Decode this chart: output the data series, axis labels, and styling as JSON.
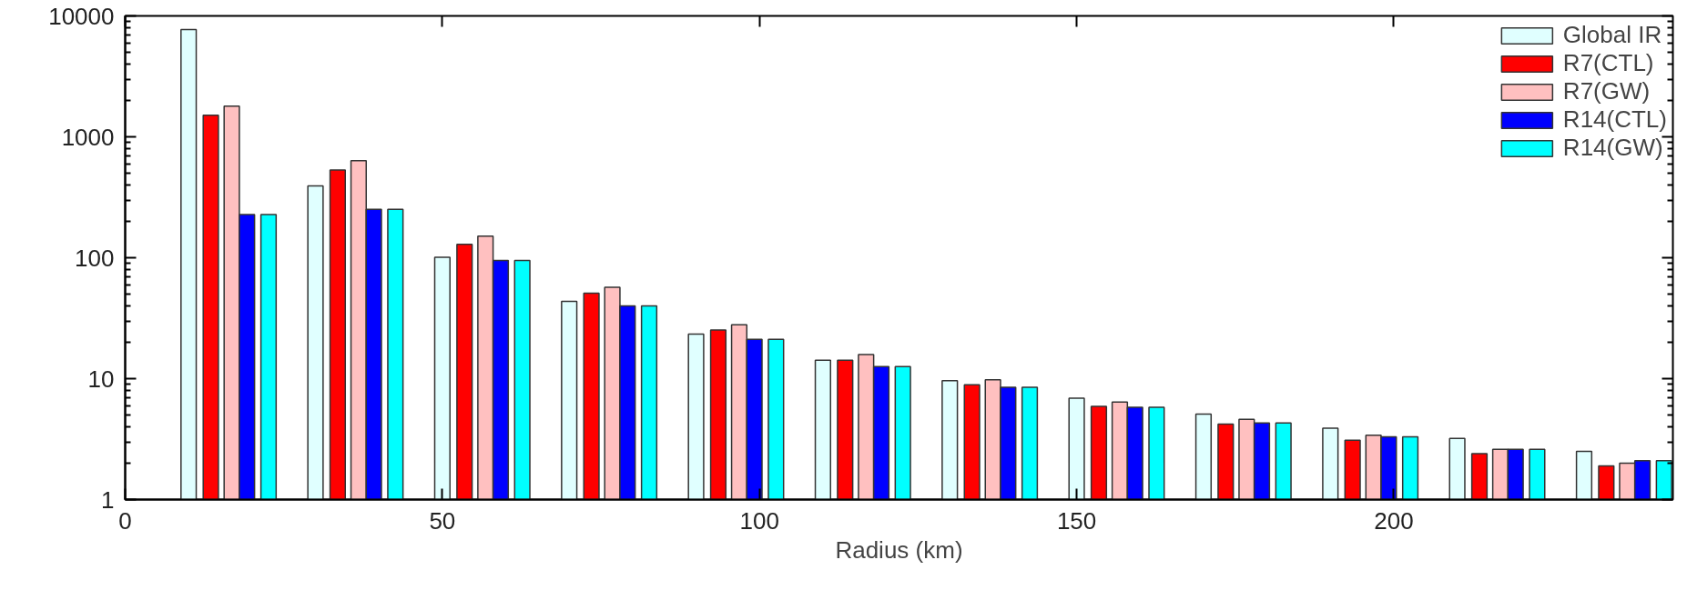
{
  "chart_data": {
    "type": "bar",
    "xlabel": "Radius (km)",
    "log": "y",
    "xlim": [
      0,
      244
    ],
    "xticks": [
      0,
      50,
      100,
      150,
      200
    ],
    "ylim": [
      1,
      10000
    ],
    "yticks": [
      1,
      10,
      100,
      1000,
      10000
    ],
    "legend": "top right",
    "grid": false,
    "series": [
      {
        "name": "Global IR",
        "color": "#e0ffff",
        "x": [
          10,
          30,
          50,
          70,
          90,
          110,
          130,
          150,
          170,
          190,
          210,
          230
        ],
        "values": [
          7700,
          392,
          101,
          43.6,
          23.4,
          14.2,
          9.6,
          6.9,
          5.1,
          3.9,
          3.2,
          2.5
        ]
      },
      {
        "name": "R7(CTL)",
        "color": "#ff0000",
        "x": [
          13.5,
          33.5,
          53.5,
          73.5,
          93.5,
          113.5,
          133.5,
          153.5,
          173.5,
          193.5,
          213.5,
          233.5
        ],
        "values": [
          1510,
          531,
          129,
          51,
          25.2,
          14.2,
          8.9,
          5.9,
          4.2,
          3.1,
          2.4,
          1.9
        ]
      },
      {
        "name": "R7(GW)",
        "color": "#ffc0c0",
        "x": [
          16.8,
          36.8,
          56.8,
          76.8,
          96.8,
          116.8,
          136.8,
          156.8,
          176.8,
          196.8,
          216.8,
          236.8
        ],
        "values": [
          1790,
          634,
          151,
          57,
          27.9,
          15.8,
          9.8,
          6.4,
          4.6,
          3.4,
          2.6,
          2.0
        ]
      },
      {
        "name": "R14(CTL)",
        "color": "#0000ff",
        "x": [
          19.2,
          39.2,
          59.2,
          79.2,
          99.2,
          119.2,
          139.2,
          159.2,
          179.2,
          199.2,
          219.2,
          239.2
        ],
        "values": [
          228,
          251,
          95,
          40,
          21.1,
          12.6,
          8.5,
          5.8,
          4.3,
          3.3,
          2.6,
          2.1
        ]
      },
      {
        "name": "R14(GW)",
        "color": "#00ffff",
        "x": [
          22.6,
          42.6,
          62.6,
          82.6,
          102.6,
          122.6,
          142.6,
          162.6,
          182.6,
          202.6,
          222.6,
          242.6
        ],
        "values": [
          228,
          251,
          95,
          40,
          21.1,
          12.6,
          8.5,
          5.8,
          4.3,
          3.3,
          2.6,
          2.1
        ]
      }
    ]
  }
}
